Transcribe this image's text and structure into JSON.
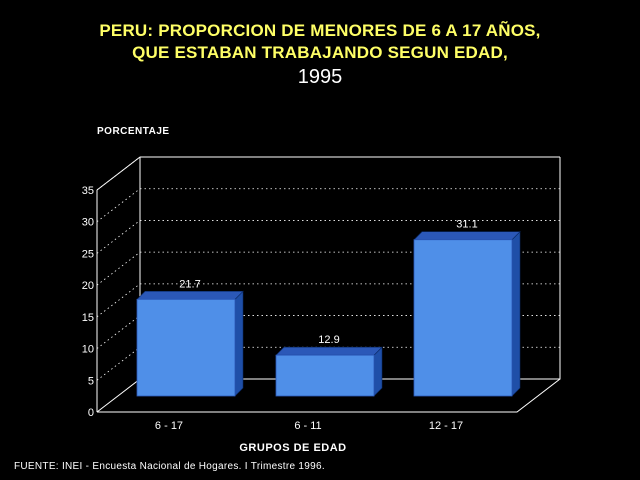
{
  "title": {
    "line1": "PERU: PROPORCION DE MENORES DE 6 A 17 AÑOS,",
    "line2": "QUE ESTABAN TRABAJANDO SEGUN EDAD,",
    "year": "1995"
  },
  "footer": "FUENTE: INEI - Encuesta Nacional de Hogares. I Trimestre 1996.",
  "colors": {
    "background": "#000000",
    "title": "#ffff66",
    "bar_front": "#4f8fe8",
    "bar_side": "#1f4fa8",
    "bar_top": "#2b58b8",
    "axis_text": "#ffffff"
  },
  "chart_data": {
    "type": "bar",
    "style": "3d",
    "ylabel": "PORCENTAJE",
    "xlabel": "GRUPOS DE EDAD",
    "categories": [
      "6 - 17",
      "6 - 11",
      "12 - 17"
    ],
    "values": [
      21.7,
      12.9,
      31.1
    ],
    "data_labels": [
      "21.7",
      "12.9",
      "31.1"
    ],
    "ylim": [
      0,
      35
    ],
    "yticks": [
      0,
      5,
      10,
      15,
      20,
      25,
      30,
      35
    ],
    "grid": "dotted horizontal on back wall",
    "legend": "none"
  }
}
